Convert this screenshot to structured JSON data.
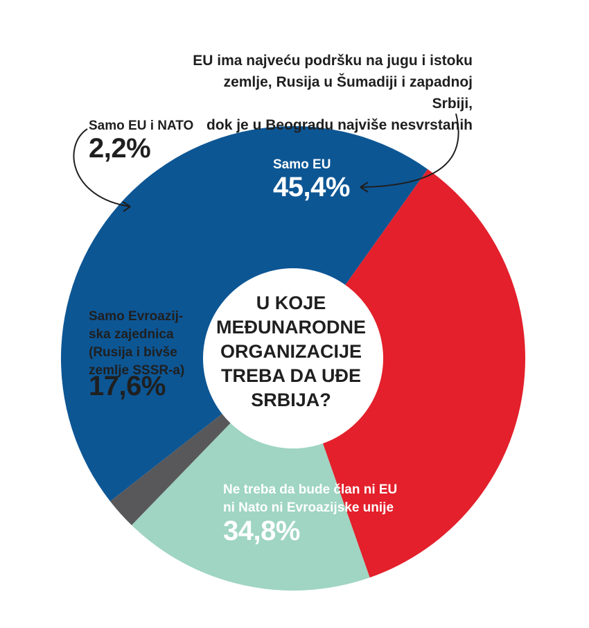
{
  "chart_data": {
    "type": "pie",
    "title": "U KOJE MEĐUNARODNE ORGANIZACIJE TREBA DA UĐE SRBIJA?",
    "slices": [
      {
        "label": "Samo EU",
        "value": 45.4,
        "display": "45,4%",
        "color": "#0d5694"
      },
      {
        "label": "Ne treba da bude član ni EU ni Nato ni Evroazijske unije",
        "value": 34.8,
        "display": "34,8%",
        "color": "#e3202b"
      },
      {
        "label": "Samo Evroazijska zajednica (Rusija i bivše zemlje SSSR-a)",
        "value": 17.6,
        "display": "17,6%",
        "color": "#9fd5c2"
      },
      {
        "label": "Samo EU i NATO",
        "value": 2.2,
        "display": "2,2%",
        "color": "#58585a"
      }
    ],
    "annotation": "EU ima najveću podršku na jugu i istoku zemlje, Rusija u Šumadiji i zapadnoj Srbiji, dok je u Beogradu najviše nesvrstanih"
  },
  "labels": {
    "center": [
      "U KOJE",
      "MEĐUNARODNE",
      "ORGANIZACIJE",
      "TREBA DA UĐE",
      "SRBIJA?"
    ],
    "note": [
      "EU ima najveću podršku na jugu i istoku",
      "zemlje, Rusija u Šumadiji i zapadnoj Srbiji,",
      "dok je u Beogradu najviše nesvrstanih"
    ],
    "eu_name": "Samo EU",
    "eu_pct": "45,4%",
    "none_name": [
      "Ne treba da bude član ni EU",
      "ni Nato ni Evroazijske unije"
    ],
    "none_pct": "34,8%",
    "eaeu_name": [
      "Samo Evroazij-",
      "ska zajednica",
      "(Rusija i bivše",
      "zemlje SSSR-a)"
    ],
    "eaeu_pct": "17,6%",
    "nato_name": "Samo EU i NATO",
    "nato_pct": "2,2%"
  }
}
